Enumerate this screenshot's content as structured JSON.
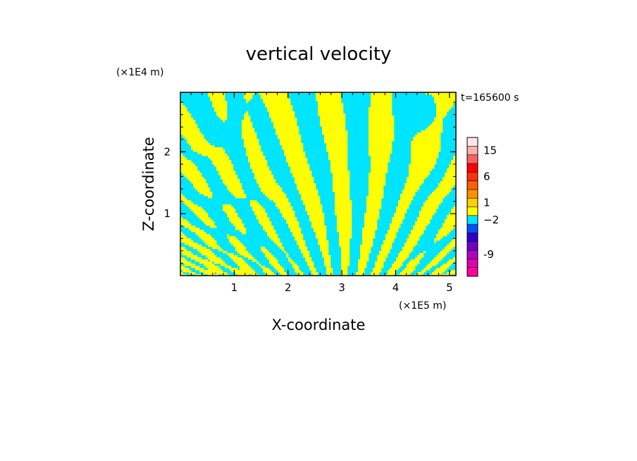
{
  "chart_data": {
    "type": "heatmap",
    "title": "vertical velocity",
    "xlabel": "X-coordinate",
    "ylabel": "Z-coordinate",
    "x_unit": "(×1E5 m)",
    "y_unit": "(×1E4 m)",
    "time_label": "t=165600 s",
    "xlim": [
      0,
      5.12
    ],
    "ylim": [
      0,
      2.96
    ],
    "x_ticks": [
      1,
      2,
      3,
      4,
      5
    ],
    "y_ticks": [
      1,
      2
    ],
    "x_tick_labels": [
      "1",
      "2",
      "3",
      "4",
      "5"
    ],
    "y_tick_labels": [
      "1",
      "2"
    ],
    "field": {
      "dominant_levels": [
        {
          "range": [
            -2,
            0
          ],
          "color": "#00e5ff"
        },
        {
          "range": [
            0,
            1
          ],
          "color": "#ffff00"
        }
      ]
    },
    "colorbar": {
      "levels": [
        {
          "color": "#ff00a0"
        },
        {
          "color": "#e000b0"
        },
        {
          "color": "#b000c0"
        },
        {
          "color": "#7000c8"
        },
        {
          "color": "#3000c8"
        },
        {
          "color": "#0050ff"
        },
        {
          "color": "#00e5ff"
        },
        {
          "color": "#ffff00"
        },
        {
          "color": "#ffd000"
        },
        {
          "color": "#ff9000"
        },
        {
          "color": "#ff6000"
        },
        {
          "color": "#ff3010"
        },
        {
          "color": "#ff0000"
        },
        {
          "color": "#ff6060"
        },
        {
          "color": "#ffb0b0"
        },
        {
          "color": "#ffe6e6"
        }
      ],
      "labels": [
        {
          "text": "-9",
          "level": 2
        },
        {
          "text": "−2",
          "level": 6
        },
        {
          "text": "1",
          "level": 8
        },
        {
          "text": "6",
          "level": 11
        },
        {
          "text": "15",
          "level": 14
        }
      ]
    }
  }
}
